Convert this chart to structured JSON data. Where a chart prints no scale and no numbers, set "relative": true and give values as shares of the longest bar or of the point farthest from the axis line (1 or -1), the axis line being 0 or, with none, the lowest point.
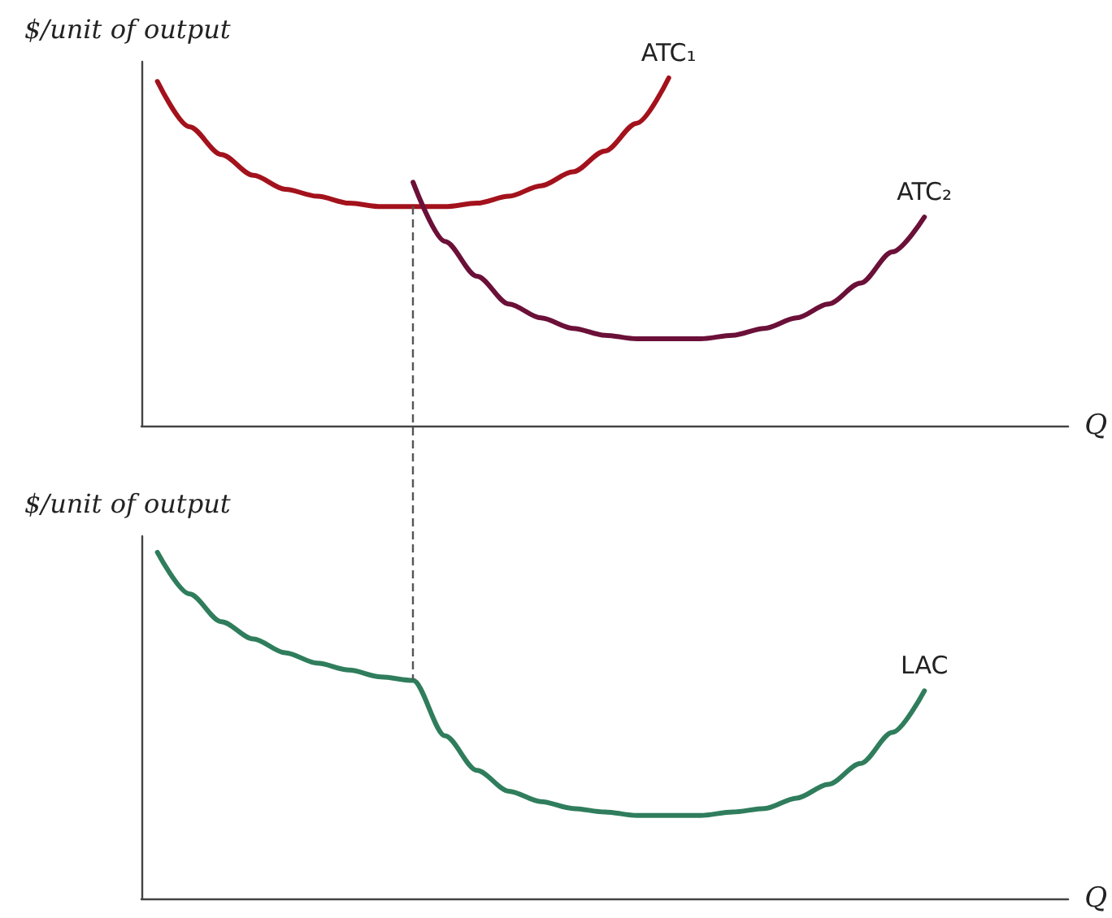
{
  "chart_data": [
    {
      "type": "line",
      "ylabel": "$/unit of output",
      "xlabel": "Q",
      "relative": true,
      "grid": false,
      "legend": false,
      "marker": "none",
      "line_style": "solid",
      "categories": [
        null,
        null,
        null,
        null,
        null,
        null,
        null,
        null,
        null,
        null,
        null,
        null,
        null,
        null,
        null,
        null,
        null,
        null,
        null,
        null,
        null,
        null,
        null,
        null,
        null,
        null,
        null,
        null,
        null
      ],
      "series": [
        {
          "name": "ATC₁",
          "color": "#a3121c",
          "values": [
            0.99,
            0.86,
            0.78,
            0.72,
            0.68,
            0.66,
            0.64,
            0.63,
            0.63,
            0.63,
            0.64,
            0.66,
            0.69,
            0.73,
            0.79,
            0.87,
            1,
            null,
            null,
            null,
            null,
            null,
            null,
            null,
            null,
            null,
            null,
            null,
            null
          ]
        },
        {
          "name": "ATC₂",
          "color": "#6b1038",
          "values": [
            null,
            null,
            null,
            null,
            null,
            null,
            null,
            null,
            0.7,
            0.53,
            0.43,
            0.35,
            0.31,
            0.28,
            0.26,
            0.25,
            0.25,
            0.25,
            0.26,
            0.28,
            0.31,
            0.35,
            0.41,
            0.5,
            0.6,
            null,
            null,
            null,
            null
          ]
        }
      ]
    },
    {
      "type": "line",
      "ylabel": "$/unit of output",
      "xlabel": "Q",
      "relative": true,
      "grid": false,
      "legend": false,
      "marker": "none",
      "line_style": "solid",
      "categories": [
        null,
        null,
        null,
        null,
        null,
        null,
        null,
        null,
        null,
        null,
        null,
        null,
        null,
        null,
        null,
        null,
        null,
        null,
        null,
        null,
        null,
        null,
        null,
        null,
        null,
        null,
        null,
        null,
        null
      ],
      "series": [
        {
          "name": "LAC",
          "color": "#2f7d5c",
          "values": [
            1,
            0.88,
            0.8,
            0.75,
            0.71,
            0.68,
            0.66,
            0.64,
            0.63,
            0.47,
            0.37,
            0.31,
            0.28,
            0.26,
            0.25,
            0.24,
            0.24,
            0.24,
            0.25,
            0.26,
            0.29,
            0.33,
            0.39,
            0.48,
            0.6,
            null,
            null,
            null,
            null
          ]
        }
      ]
    }
  ]
}
